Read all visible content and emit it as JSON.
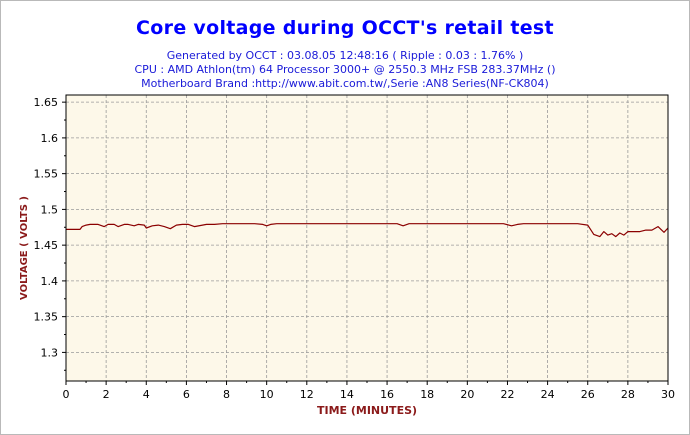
{
  "chart_data": {
    "type": "line",
    "title": "Core voltage during OCCT's retail test",
    "subtitles": [
      "Generated by OCCT : 03.08.05 12:48:16 ( Ripple : 0.03 : 1.76% )",
      "CPU : AMD Athlon(tm) 64 Processor 3000+ @ 2550.3 MHz FSB 283.37MHz ()",
      "Motherboard Brand :http://www.abit.com.tw/,Serie :AN8 Series(NF-CK804)"
    ],
    "xlabel": "TIME (MINUTES)",
    "ylabel": "VOLTAGE ( VOLTS )",
    "xlim": [
      0,
      30
    ],
    "ylim": [
      1.26,
      1.66
    ],
    "xticks": [
      "0",
      "2",
      "4",
      "6",
      "8",
      "10",
      "12",
      "14",
      "16",
      "18",
      "20",
      "22",
      "24",
      "26",
      "28",
      "30"
    ],
    "xtick_values": [
      0,
      2,
      4,
      6,
      8,
      10,
      12,
      14,
      16,
      18,
      20,
      22,
      24,
      26,
      28,
      30
    ],
    "yticks": [
      "1.3",
      "1.35",
      "1.4",
      "1.45",
      "1.5",
      "1.55",
      "1.6",
      "1.65"
    ],
    "ytick_values": [
      1.3,
      1.35,
      1.4,
      1.45,
      1.5,
      1.55,
      1.6,
      1.65
    ],
    "grid": true,
    "colors": {
      "line": "#8b0000",
      "plot_bg": "#fdf8e9",
      "grid": "#9a9a9a",
      "title": "#0000ff",
      "axis_label": "#8b1a1a"
    },
    "series": [
      {
        "x": [
          0,
          0.7,
          0.8,
          1.0,
          1.2,
          1.6,
          1.9,
          2.1,
          2.4,
          2.6,
          2.9,
          3.1,
          3.4,
          3.6,
          3.9,
          4.0,
          4.3,
          4.6,
          4.9,
          5.2,
          5.5,
          5.8,
          6.1,
          6.4,
          6.8,
          7.0,
          7.4,
          7.8,
          8.2,
          8.6,
          9.0,
          9.4,
          9.8,
          10.0,
          10.2,
          10.5,
          11,
          12,
          13,
          14,
          15,
          16,
          16.5,
          16.8,
          17.1,
          17.5,
          18,
          19,
          20,
          21,
          21.8,
          22.2,
          22.5,
          22.8,
          23.2,
          23.6,
          24,
          24.5,
          25,
          25.5,
          26.0,
          26.3,
          26.6,
          26.8,
          27.0,
          27.2,
          27.4,
          27.6,
          27.8,
          28.0,
          28.3,
          28.6,
          28.9,
          29.2,
          29.5,
          29.8,
          30
        ],
        "y": [
          1.472,
          1.472,
          1.476,
          1.478,
          1.479,
          1.479,
          1.476,
          1.479,
          1.479,
          1.476,
          1.479,
          1.479,
          1.477,
          1.479,
          1.478,
          1.474,
          1.477,
          1.478,
          1.476,
          1.473,
          1.478,
          1.479,
          1.479,
          1.476,
          1.478,
          1.479,
          1.479,
          1.48,
          1.48,
          1.48,
          1.48,
          1.48,
          1.479,
          1.477,
          1.479,
          1.48,
          1.48,
          1.48,
          1.48,
          1.48,
          1.48,
          1.48,
          1.48,
          1.477,
          1.48,
          1.48,
          1.48,
          1.48,
          1.48,
          1.48,
          1.48,
          1.477,
          1.479,
          1.48,
          1.48,
          1.48,
          1.48,
          1.48,
          1.48,
          1.48,
          1.478,
          1.465,
          1.462,
          1.469,
          1.464,
          1.466,
          1.462,
          1.467,
          1.464,
          1.469,
          1.469,
          1.469,
          1.471,
          1.471,
          1.476,
          1.468,
          1.474
        ]
      }
    ]
  }
}
